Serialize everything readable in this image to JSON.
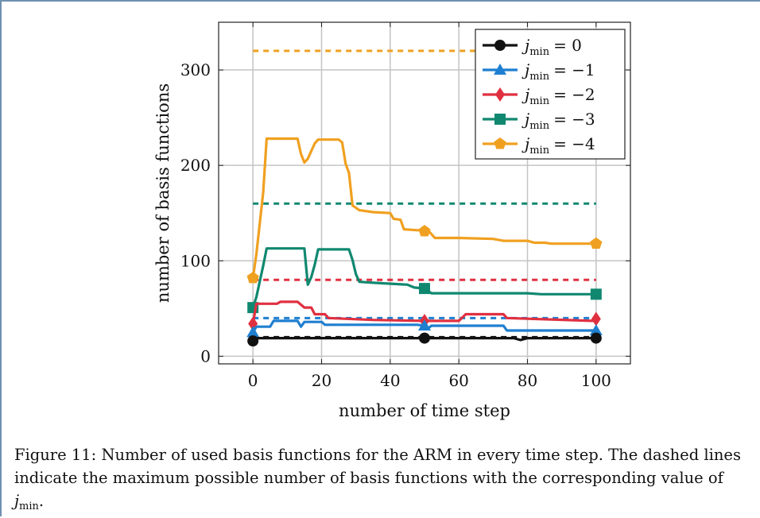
{
  "chart_data": {
    "type": "line",
    "xlabel": "number of time step",
    "ylabel": "number of basis functions",
    "xlim": [
      -10,
      110
    ],
    "ylim": [
      -8,
      350
    ],
    "x_ticks": [
      0,
      20,
      40,
      60,
      80,
      100
    ],
    "y_ticks": [
      0,
      100,
      200,
      300
    ],
    "grid": true,
    "legend_position": "top-right",
    "series": [
      {
        "name": "j_min = 0",
        "legend_label": {
          "var": "j",
          "sub": "min",
          "rel": "= 0"
        },
        "color": "#111111",
        "marker": "circle",
        "points": [
          [
            0,
            16
          ],
          [
            1,
            19
          ],
          [
            50,
            19
          ],
          [
            76,
            19
          ],
          [
            78,
            17
          ],
          [
            80,
            19
          ],
          [
            100,
            19
          ]
        ],
        "marker_points": [
          [
            0,
            16
          ],
          [
            50,
            19
          ],
          [
            100,
            19
          ]
        ],
        "max_line": 20
      },
      {
        "name": "j_min = -1",
        "legend_label": {
          "var": "j",
          "sub": "min",
          "rel": "= −1"
        },
        "color": "#1f7fd0",
        "marker": "triangle",
        "points": [
          [
            0,
            25
          ],
          [
            1,
            31
          ],
          [
            5,
            31
          ],
          [
            6,
            37
          ],
          [
            13,
            37
          ],
          [
            14,
            31
          ],
          [
            15,
            36
          ],
          [
            20,
            36
          ],
          [
            21,
            33
          ],
          [
            48,
            33
          ],
          [
            50,
            32
          ],
          [
            51,
            29
          ],
          [
            52,
            32
          ],
          [
            73,
            32
          ],
          [
            74,
            27
          ],
          [
            100,
            27
          ]
        ],
        "marker_points": [
          [
            0,
            25
          ],
          [
            50,
            32
          ],
          [
            100,
            27
          ]
        ],
        "max_line": 40
      },
      {
        "name": "j_min = -2",
        "legend_label": {
          "var": "j",
          "sub": "min",
          "rel": "= −2"
        },
        "color": "#e03040",
        "marker": "diamond",
        "points": [
          [
            0,
            34
          ],
          [
            1,
            55
          ],
          [
            7,
            55
          ],
          [
            8,
            57
          ],
          [
            13,
            57
          ],
          [
            15,
            51
          ],
          [
            17,
            51
          ],
          [
            18,
            44
          ],
          [
            21,
            44
          ],
          [
            22,
            40
          ],
          [
            35,
            38
          ],
          [
            50,
            37
          ],
          [
            60,
            37
          ],
          [
            62,
            44
          ],
          [
            73,
            44
          ],
          [
            74,
            40
          ],
          [
            99,
            37
          ],
          [
            100,
            39
          ]
        ],
        "marker_points": [
          [
            0,
            34
          ],
          [
            50,
            37
          ],
          [
            100,
            39
          ]
        ],
        "max_line": 80
      },
      {
        "name": "j_min = -3",
        "legend_label": {
          "var": "j",
          "sub": "min",
          "rel": "= −3"
        },
        "color": "#108870",
        "marker": "square",
        "points": [
          [
            0,
            51
          ],
          [
            1,
            62
          ],
          [
            3,
            95
          ],
          [
            4,
            113
          ],
          [
            15,
            113
          ],
          [
            16,
            75
          ],
          [
            17,
            83
          ],
          [
            18,
            96
          ],
          [
            19,
            112
          ],
          [
            28,
            112
          ],
          [
            29,
            101
          ],
          [
            30,
            86
          ],
          [
            31,
            78
          ],
          [
            35,
            77
          ],
          [
            45,
            75
          ],
          [
            47,
            72
          ],
          [
            50,
            71
          ],
          [
            52,
            66
          ],
          [
            80,
            66
          ],
          [
            84,
            65
          ],
          [
            100,
            65
          ]
        ],
        "marker_points": [
          [
            0,
            51
          ],
          [
            50,
            71
          ],
          [
            100,
            65
          ]
        ],
        "max_line": 160
      },
      {
        "name": "j_min = -4",
        "legend_label": {
          "var": "j",
          "sub": "min",
          "rel": "= −4"
        },
        "color": "#f0a020",
        "marker": "pentagon",
        "points": [
          [
            0,
            82
          ],
          [
            1,
            107
          ],
          [
            3,
            172
          ],
          [
            4,
            228
          ],
          [
            13,
            228
          ],
          [
            14,
            212
          ],
          [
            15,
            203
          ],
          [
            16,
            207
          ],
          [
            18,
            223
          ],
          [
            19,
            227
          ],
          [
            25,
            227
          ],
          [
            26,
            224
          ],
          [
            27,
            202
          ],
          [
            28,
            192
          ],
          [
            29,
            158
          ],
          [
            31,
            153
          ],
          [
            35,
            151
          ],
          [
            40,
            150
          ],
          [
            41,
            144
          ],
          [
            43,
            143
          ],
          [
            44,
            133
          ],
          [
            48,
            132
          ],
          [
            51,
            132
          ],
          [
            53,
            124
          ],
          [
            60,
            124
          ],
          [
            70,
            123
          ],
          [
            73,
            121
          ],
          [
            80,
            121
          ],
          [
            82,
            119
          ],
          [
            85,
            119
          ],
          [
            87,
            118
          ],
          [
            100,
            118
          ]
        ],
        "marker_points": [
          [
            0,
            82
          ],
          [
            50,
            131
          ],
          [
            100,
            118
          ]
        ],
        "max_line": 320
      }
    ]
  },
  "caption": {
    "prefix": "Figure 11: Number of used basis functions for the ARM in every time step. The dashed lines indicate the maximum possible number of basis functions with the corresponding value of ",
    "var": "j",
    "sub": "min",
    "suffix": "."
  }
}
